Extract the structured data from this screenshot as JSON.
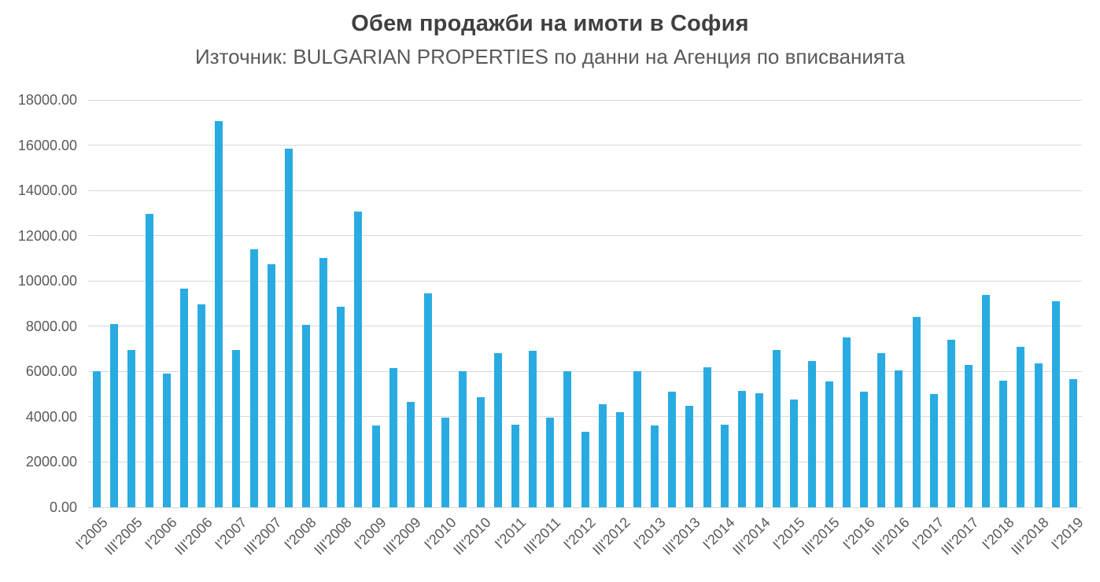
{
  "chart_data": {
    "type": "bar",
    "title": "Обем продажби на имоти в София",
    "subtitle": "Източник: BULGARIAN PROPERTIES по данни на Агенция по вписванията",
    "xlabel": "",
    "ylabel": "",
    "grid": true,
    "legend": "none",
    "ylim": [
      0,
      18000
    ],
    "y_ticks": [
      "0.00",
      "2000.00",
      "4000.00",
      "6000.00",
      "8000.00",
      "10000.00",
      "12000.00",
      "14000.00",
      "16000.00",
      "18000.00"
    ],
    "x_label_every": 2,
    "bar_color": "#29abe2",
    "gridline_color": "#d9d9d9",
    "axis_text_color": "#595959",
    "categories": [
      "I'2005",
      "II'2005",
      "III'2005",
      "IV'2005",
      "I'2006",
      "II'2006",
      "III'2006",
      "IV'2006",
      "I'2007",
      "II'2007",
      "III'2007",
      "IV'2007",
      "I'2008",
      "II'2008",
      "III'2008",
      "IV'2008",
      "I'2009",
      "II'2009",
      "III'2009",
      "IV'2009",
      "I'2010",
      "II'2010",
      "III'2010",
      "IV'2010",
      "I'2011",
      "II'2011",
      "III'2011",
      "IV'2011",
      "I'2012",
      "II'2012",
      "III'2012",
      "IV'2012",
      "I'2013",
      "II'2013",
      "III'2013",
      "IV'2013",
      "I'2014",
      "II'2014",
      "III'2014",
      "IV'2014",
      "I'2015",
      "II'2015",
      "III'2015",
      "IV'2015",
      "I'2016",
      "II'2016",
      "III'2016",
      "IV'2016",
      "I'2017",
      "II'2017",
      "III'2017",
      "IV'2017",
      "I'2018",
      "II'2018",
      "III'2018",
      "IV'2018",
      "I'2019"
    ],
    "values": [
      6000,
      8100,
      6950,
      12950,
      5900,
      9650,
      8950,
      17050,
      6950,
      11400,
      10750,
      15850,
      8050,
      11000,
      8850,
      13050,
      3600,
      6150,
      4650,
      9450,
      3950,
      6000,
      4850,
      6800,
      3650,
      6900,
      3950,
      6000,
      3350,
      4550,
      4200,
      6000,
      3600,
      5100,
      4500,
      6200,
      3650,
      5150,
      5050,
      6950,
      4750,
      6450,
      5550,
      7500,
      5100,
      6800,
      6050,
      8400,
      5000,
      7400,
      6300,
      9400,
      5600,
      7100,
      6350,
      9100,
      5650
    ]
  }
}
